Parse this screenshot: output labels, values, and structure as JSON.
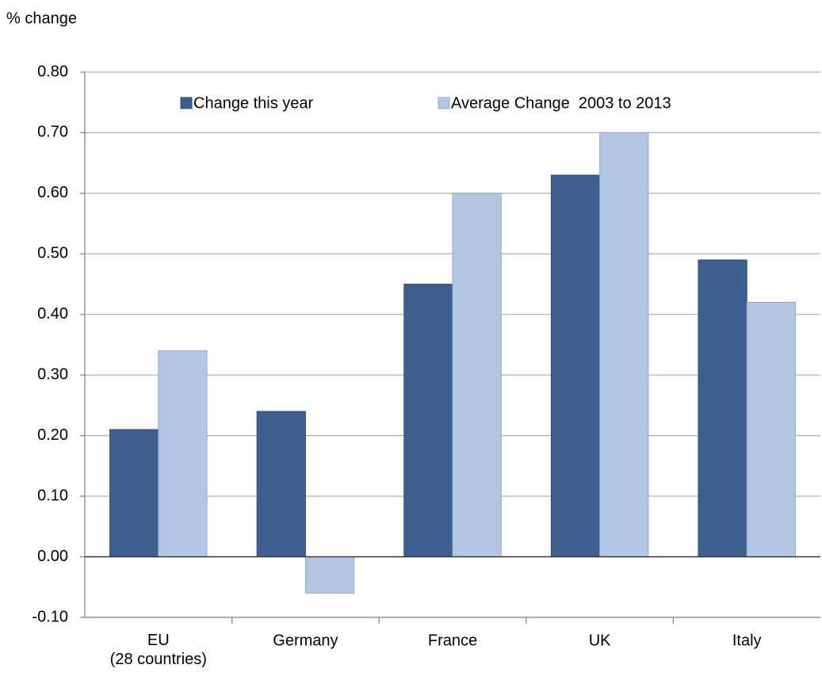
{
  "chart_data": {
    "type": "bar",
    "y_label": "% change",
    "categories": [
      "EU\n(28 countries)",
      "Germany",
      "France",
      "UK",
      "Italy"
    ],
    "series": [
      {
        "name": "Change this year",
        "color": "#3c5f8f",
        "values": [
          0.21,
          0.24,
          0.45,
          0.63,
          0.49
        ]
      },
      {
        "name": "Average Change  2003 to 2013",
        "color": "#b3c7e5",
        "values": [
          0.34,
          -0.06,
          0.6,
          0.7,
          0.42
        ]
      }
    ],
    "ylim": [
      -0.1,
      0.8
    ],
    "yticks": [
      {
        "value": -0.1,
        "label": "-0.10"
      },
      {
        "value": 0,
        "label": "0.00"
      },
      {
        "value": 0.1,
        "label": "0.10"
      },
      {
        "value": 0.2,
        "label": "0.20"
      },
      {
        "value": 0.3,
        "label": "0.30"
      },
      {
        "value": 0.4,
        "label": "0.40"
      },
      {
        "value": 0.5,
        "label": "0.50"
      },
      {
        "value": 0.6,
        "label": "0.60"
      },
      {
        "value": 0.7,
        "label": "0.70"
      },
      {
        "value": 0.8,
        "label": "0.80"
      }
    ],
    "grid": true,
    "legend": "top"
  }
}
